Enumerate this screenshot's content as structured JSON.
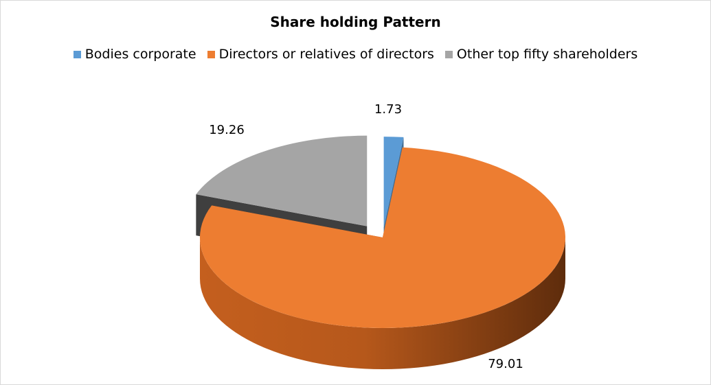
{
  "chart_data": {
    "type": "pie",
    "title": "Share holding Pattern",
    "categories": [
      "Bodies corporate",
      "Directors or relatives of directors",
      "Other top fifty shareholders"
    ],
    "values": [
      1.73,
      79.01,
      19.26
    ],
    "data_labels": [
      "1.73",
      "79.01",
      "19.26"
    ],
    "legend_placement": "top",
    "style": "3d-exploded",
    "colors": [
      "#5b9bd5",
      "#ed7d31",
      "#a5a5a5"
    ]
  }
}
